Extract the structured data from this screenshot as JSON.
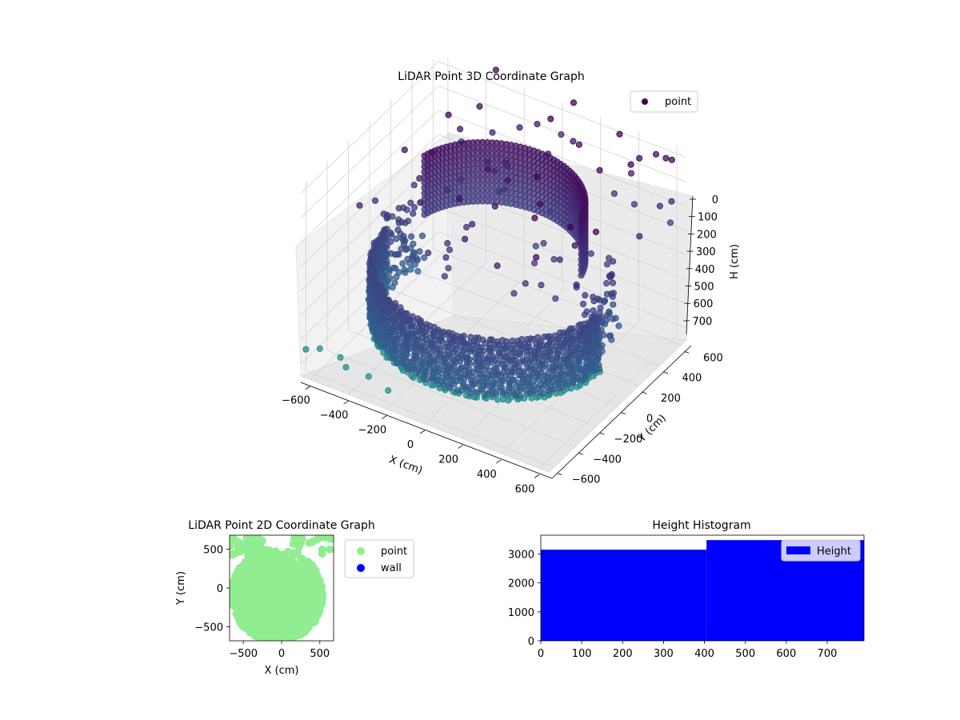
{
  "chart_data": [
    {
      "type": "scatter",
      "projection": "3d",
      "title": "LiDAR Point 3D Coordinate Graph",
      "xlabel": "X (cm)",
      "ylabel": "Y (cm)",
      "zlabel": "H (cm)",
      "xticks": [
        "−600",
        "−400",
        "−200",
        "0",
        "200",
        "400",
        "600"
      ],
      "yticks": [
        "−600",
        "−400",
        "−200",
        "0",
        "200",
        "400",
        "600"
      ],
      "zticks": [
        "0",
        "100",
        "200",
        "300",
        "400",
        "500",
        "600",
        "700"
      ],
      "xlim": [
        -650,
        650
      ],
      "ylim": [
        -650,
        650
      ],
      "zlim": [
        750,
        0
      ],
      "colormap": "viridis",
      "grid": true,
      "legend": {
        "placement": "upper right",
        "entries": [
          {
            "label": "point",
            "color": "#440154"
          }
        ]
      },
      "clusters": {
        "back_wall": {
          "center": [
            0,
            0
          ],
          "radius": 420,
          "heights": [
            200,
            260
          ]
        },
        "front_wall": {
          "center": [
            0,
            0
          ],
          "radius": 560,
          "heights": [
            390,
            630
          ]
        },
        "outliers_far": [
          [
            -640,
            -620,
            650
          ],
          [
            -600,
            -560,
            660
          ],
          [
            -470,
            -600,
            640
          ],
          [
            -430,
            -620,
            660
          ],
          [
            -300,
            -640,
            650
          ],
          [
            -220,
            -600,
            700
          ],
          [
            300,
            650,
            10
          ],
          [
            420,
            620,
            60
          ],
          [
            -420,
            440,
            120
          ],
          [
            -250,
            460,
            250
          ]
        ]
      }
    },
    {
      "type": "scatter",
      "title": "LiDAR Point 2D Coordinate Graph",
      "xlabel": "X (cm)",
      "ylabel": "Y (cm)",
      "xticks": [
        "−500",
        "0",
        "500"
      ],
      "yticks": [
        "−500",
        "0",
        "500"
      ],
      "xlim": [
        -680,
        680
      ],
      "ylim": [
        -680,
        680
      ],
      "series": [
        {
          "name": "point",
          "color": "#90ee90",
          "points": "disk radius 560 centered (-80,-80) with notches near top"
        },
        {
          "name": "wall",
          "color": "#0000ff",
          "points": []
        }
      ],
      "legend": {
        "placement": "outside-right",
        "entries": [
          {
            "label": "point",
            "color": "#90ee90"
          },
          {
            "label": "wall",
            "color": "#0000ff"
          }
        ]
      }
    },
    {
      "type": "bar",
      "title": "Height Histogram",
      "xticks": [
        "0",
        "100",
        "200",
        "300",
        "400",
        "500",
        "600",
        "700"
      ],
      "yticks": [
        "0",
        "1000",
        "2000",
        "3000"
      ],
      "xlim": [
        0,
        790
      ],
      "ylim": [
        0,
        3650
      ],
      "bins": [
        {
          "x0": 0,
          "x1": 405,
          "value": 3150
        },
        {
          "x0": 405,
          "x1": 790,
          "value": 3480
        }
      ],
      "color": "#0000ff",
      "legend": {
        "placement": "upper right",
        "entries": [
          {
            "label": "Height",
            "color": "#0000ff"
          }
        ]
      }
    }
  ]
}
